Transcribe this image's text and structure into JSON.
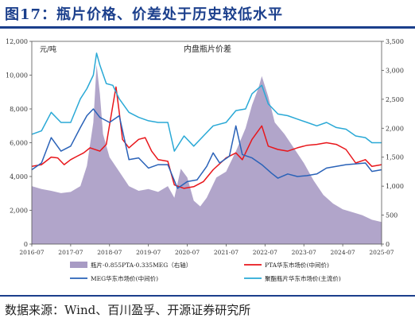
{
  "figure_title": "图17：瓶片价格、价差处于历史较低水平",
  "source_text": "数据来源：Wind、百川盈孚、开源证券研究所",
  "colors": {
    "spread_fill": "#a89bc4",
    "pta": "#e8161b",
    "meg": "#2a62b8",
    "bottle": "#2aa9d6",
    "brand": "#1b3f8c"
  },
  "chart_data": {
    "type": "line",
    "title": "内盘瓶片价差",
    "ylabel_left": "元/吨",
    "ylim_left": [
      0,
      12000
    ],
    "ylim_right": [
      0,
      3500
    ],
    "left_ticks": [
      "0",
      "2,000",
      "4,000",
      "6,000",
      "8,000",
      "10,000",
      "12,000"
    ],
    "right_ticks": [
      "0",
      "500",
      "1,000",
      "1,500",
      "2,000",
      "2,500",
      "3,000",
      "3,500"
    ],
    "x_ticks": [
      "2016-07",
      "2017-07",
      "2018-07",
      "2019-07",
      "2020-07",
      "2021-07",
      "2022-07",
      "2023-07",
      "2024-07",
      "2025-07"
    ],
    "grid": false,
    "legend_position": "bottom",
    "series": [
      {
        "name": "瓶片-0.855PTA-0.335MEG（右轴）",
        "type": "area",
        "axis": "right",
        "points": [
          [
            "2016-07",
            1000
          ],
          [
            "2016-10",
            950
          ],
          [
            "2017-01",
            920
          ],
          [
            "2017-04",
            880
          ],
          [
            "2017-07",
            900
          ],
          [
            "2017-10",
            1000
          ],
          [
            "2017-12",
            1350
          ],
          [
            "2018-02",
            2100
          ],
          [
            "2018-03",
            3100
          ],
          [
            "2018-04",
            2600
          ],
          [
            "2018-05",
            1900
          ],
          [
            "2018-07",
            1500
          ],
          [
            "2018-10",
            1250
          ],
          [
            "2019-01",
            1000
          ],
          [
            "2019-04",
            920
          ],
          [
            "2019-07",
            950
          ],
          [
            "2019-10",
            900
          ],
          [
            "2020-01",
            1000
          ],
          [
            "2020-03",
            800
          ],
          [
            "2020-05",
            1300
          ],
          [
            "2020-07",
            1150
          ],
          [
            "2020-09",
            750
          ],
          [
            "2020-11",
            650
          ],
          [
            "2021-01",
            800
          ],
          [
            "2021-04",
            1150
          ],
          [
            "2021-07",
            1250
          ],
          [
            "2021-10",
            1600
          ],
          [
            "2022-01",
            2000
          ],
          [
            "2022-03",
            2400
          ],
          [
            "2022-05",
            2700
          ],
          [
            "2022-06",
            2900
          ],
          [
            "2022-08",
            2550
          ],
          [
            "2022-10",
            2100
          ],
          [
            "2023-01",
            1900
          ],
          [
            "2023-04",
            1650
          ],
          [
            "2023-07",
            1400
          ],
          [
            "2023-10",
            1100
          ],
          [
            "2024-01",
            850
          ],
          [
            "2024-04",
            700
          ],
          [
            "2024-07",
            600
          ],
          [
            "2024-10",
            550
          ],
          [
            "2025-01",
            500
          ],
          [
            "2025-04",
            420
          ],
          [
            "2025-07",
            380
          ]
        ]
      },
      {
        "name": "PTA华东市场价(中间价)",
        "type": "line",
        "axis": "left",
        "points": [
          [
            "2016-07",
            4600
          ],
          [
            "2016-10",
            4700
          ],
          [
            "2017-01",
            5150
          ],
          [
            "2017-03",
            5100
          ],
          [
            "2017-05",
            4700
          ],
          [
            "2017-07",
            5000
          ],
          [
            "2017-09",
            5200
          ],
          [
            "2017-11",
            5400
          ],
          [
            "2018-01",
            5700
          ],
          [
            "2018-04",
            5500
          ],
          [
            "2018-06",
            5900
          ],
          [
            "2018-08",
            8200
          ],
          [
            "2018-09",
            9300
          ],
          [
            "2018-10",
            7800
          ],
          [
            "2018-11",
            6200
          ],
          [
            "2019-01",
            5700
          ],
          [
            "2019-04",
            6200
          ],
          [
            "2019-06",
            6300
          ],
          [
            "2019-08",
            5500
          ],
          [
            "2019-10",
            5000
          ],
          [
            "2020-01",
            4900
          ],
          [
            "2020-03",
            3500
          ],
          [
            "2020-06",
            3300
          ],
          [
            "2020-09",
            3400
          ],
          [
            "2020-12",
            3700
          ],
          [
            "2021-03",
            4400
          ],
          [
            "2021-07",
            5100
          ],
          [
            "2021-10",
            5400
          ],
          [
            "2021-12",
            5000
          ],
          [
            "2022-03",
            6200
          ],
          [
            "2022-06",
            7000
          ],
          [
            "2022-08",
            5800
          ],
          [
            "2022-11",
            5600
          ],
          [
            "2023-02",
            5500
          ],
          [
            "2023-05",
            5700
          ],
          [
            "2023-08",
            5850
          ],
          [
            "2023-11",
            5900
          ],
          [
            "2024-02",
            6000
          ],
          [
            "2024-05",
            5900
          ],
          [
            "2024-08",
            5600
          ],
          [
            "2024-11",
            4800
          ],
          [
            "2025-02",
            5000
          ],
          [
            "2025-04",
            4600
          ],
          [
            "2025-07",
            4700
          ]
        ]
      },
      {
        "name": "MEG华东市场价(中间价)",
        "type": "line",
        "axis": "left",
        "points": [
          [
            "2016-07",
            4400
          ],
          [
            "2016-10",
            4800
          ],
          [
            "2017-01",
            6300
          ],
          [
            "2017-04",
            5500
          ],
          [
            "2017-07",
            5800
          ],
          [
            "2017-10",
            6900
          ],
          [
            "2017-12",
            7600
          ],
          [
            "2018-02",
            8000
          ],
          [
            "2018-04",
            7500
          ],
          [
            "2018-07",
            7200
          ],
          [
            "2018-10",
            7600
          ],
          [
            "2019-01",
            5000
          ],
          [
            "2019-04",
            5100
          ],
          [
            "2019-07",
            4500
          ],
          [
            "2019-10",
            4700
          ],
          [
            "2020-01",
            4700
          ],
          [
            "2020-04",
            3300
          ],
          [
            "2020-07",
            3700
          ],
          [
            "2020-10",
            3800
          ],
          [
            "2021-01",
            4600
          ],
          [
            "2021-03",
            5400
          ],
          [
            "2021-05",
            4800
          ],
          [
            "2021-08",
            5200
          ],
          [
            "2021-10",
            7000
          ],
          [
            "2021-12",
            5300
          ],
          [
            "2022-03",
            5100
          ],
          [
            "2022-06",
            4700
          ],
          [
            "2022-09",
            4200
          ],
          [
            "2022-11",
            3900
          ],
          [
            "2023-02",
            4150
          ],
          [
            "2023-05",
            4000
          ],
          [
            "2023-08",
            4050
          ],
          [
            "2023-11",
            4150
          ],
          [
            "2024-02",
            4500
          ],
          [
            "2024-05",
            4600
          ],
          [
            "2024-08",
            4700
          ],
          [
            "2024-11",
            4750
          ],
          [
            "2025-02",
            4800
          ],
          [
            "2025-04",
            4300
          ],
          [
            "2025-07",
            4400
          ]
        ]
      },
      {
        "name": "聚酯瓶片华东市场价(主流价)",
        "type": "line",
        "axis": "left",
        "points": [
          [
            "2016-07",
            6500
          ],
          [
            "2016-10",
            6700
          ],
          [
            "2017-01",
            7800
          ],
          [
            "2017-04",
            7200
          ],
          [
            "2017-07",
            7200
          ],
          [
            "2017-10",
            8600
          ],
          [
            "2017-12",
            9200
          ],
          [
            "2018-02",
            10000
          ],
          [
            "2018-03",
            11300
          ],
          [
            "2018-04",
            10600
          ],
          [
            "2018-06",
            9500
          ],
          [
            "2018-08",
            9400
          ],
          [
            "2018-10",
            8600
          ],
          [
            "2019-01",
            7800
          ],
          [
            "2019-04",
            7500
          ],
          [
            "2019-07",
            7300
          ],
          [
            "2019-10",
            7200
          ],
          [
            "2020-01",
            7200
          ],
          [
            "2020-03",
            5500
          ],
          [
            "2020-06",
            6400
          ],
          [
            "2020-09",
            5800
          ],
          [
            "2020-12",
            6400
          ],
          [
            "2021-03",
            7000
          ],
          [
            "2021-07",
            7200
          ],
          [
            "2021-10",
            7900
          ],
          [
            "2022-01",
            8000
          ],
          [
            "2022-03",
            8900
          ],
          [
            "2022-06",
            9400
          ],
          [
            "2022-08",
            8300
          ],
          [
            "2022-11",
            7700
          ],
          [
            "2023-02",
            7600
          ],
          [
            "2023-05",
            7400
          ],
          [
            "2023-08",
            7200
          ],
          [
            "2023-11",
            7000
          ],
          [
            "2024-02",
            7200
          ],
          [
            "2024-05",
            6900
          ],
          [
            "2024-08",
            6800
          ],
          [
            "2024-11",
            6400
          ],
          [
            "2025-02",
            6300
          ],
          [
            "2025-04",
            6000
          ],
          [
            "2025-07",
            6000
          ]
        ]
      }
    ]
  }
}
